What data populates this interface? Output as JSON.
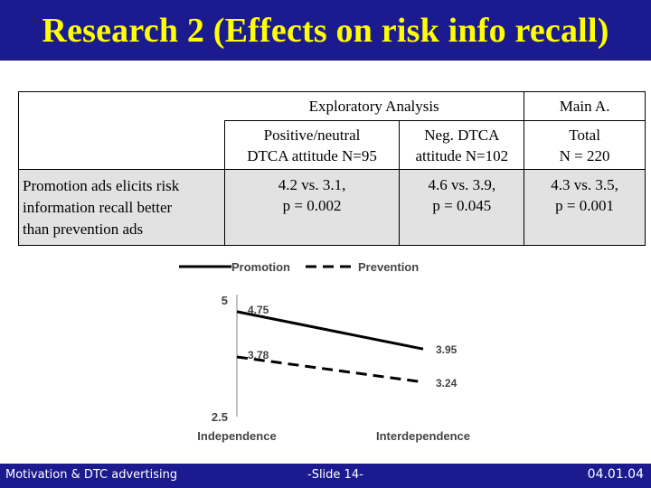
{
  "slide": {
    "title": "Research 2 (Effects on risk info recall)"
  },
  "table": {
    "header_exploratory": "Exploratory Analysis",
    "header_main": "Main A.",
    "col1_line1": "Positive/neutral",
    "col1_line2": "DTCA attitude N=95",
    "col2_line1": "Neg. DTCA",
    "col2_line2": "attitude N=102",
    "col3_line1": "Total",
    "col3_line2": "N = 220",
    "row_label_line1": "Promotion ads elicits risk",
    "row_label_line2": "information recall better",
    "row_label_line3": "than prevention ads",
    "cell1_line1": "4.2 vs. 3.1,",
    "cell1_line2": "p = 0.002",
    "cell2_line1": "4.6 vs. 3.9,",
    "cell2_line2": "p = 0.045",
    "cell3_line1": "4.3 vs. 3.5,",
    "cell3_line2": "p = 0.001"
  },
  "chart_data": {
    "type": "line",
    "categories": [
      "Independence",
      "Interdependence"
    ],
    "series": [
      {
        "name": "Promotion",
        "values": [
          4.75,
          3.95
        ],
        "dash": "solid"
      },
      {
        "name": "Prevention",
        "values": [
          3.78,
          3.24
        ],
        "dash": "dashed"
      }
    ],
    "y_ticks": [
      "5",
      "2.5"
    ],
    "ylim": [
      2.5,
      5
    ],
    "legend_position": "top",
    "grid": false,
    "colors": {
      "line": "#000000",
      "text": "#000000"
    }
  },
  "footer": {
    "left": "Motivation & DTC advertising",
    "center": "-Slide 14-",
    "right": "04.01.04"
  },
  "colors": {
    "bar": "#1b1b8f",
    "title_text": "#ffff00",
    "footer_text": "#ffffff",
    "shade": "#e2e2e2"
  }
}
